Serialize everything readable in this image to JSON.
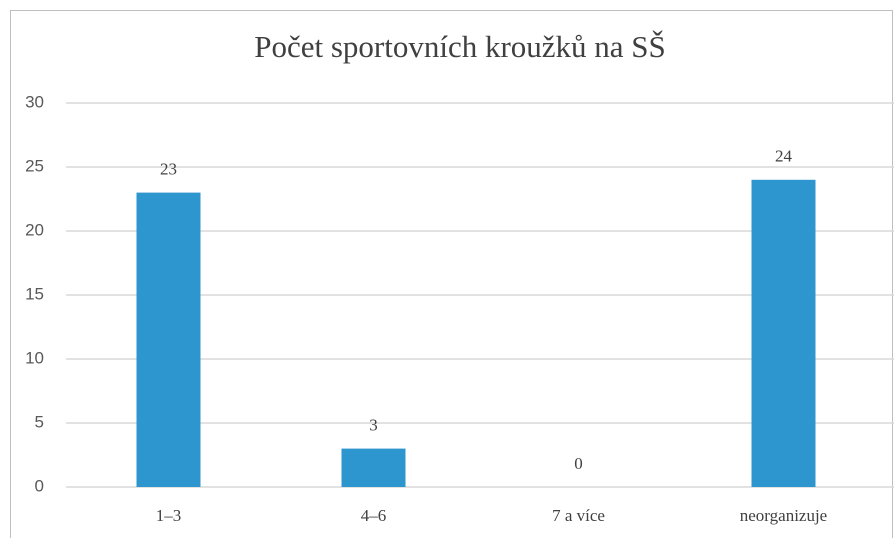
{
  "chart_data": {
    "type": "bar",
    "title": "Počet sportovních kroužků na SŠ",
    "categories": [
      "1–3",
      "4–6",
      "7 a více",
      "neorganizuje"
    ],
    "values": [
      23,
      3,
      0,
      24
    ],
    "color": "#2e96cf",
    "ylim": [
      0,
      30
    ],
    "yticks": [
      0,
      5,
      10,
      15,
      20,
      25,
      30
    ],
    "grid": true,
    "data_labels": true
  }
}
